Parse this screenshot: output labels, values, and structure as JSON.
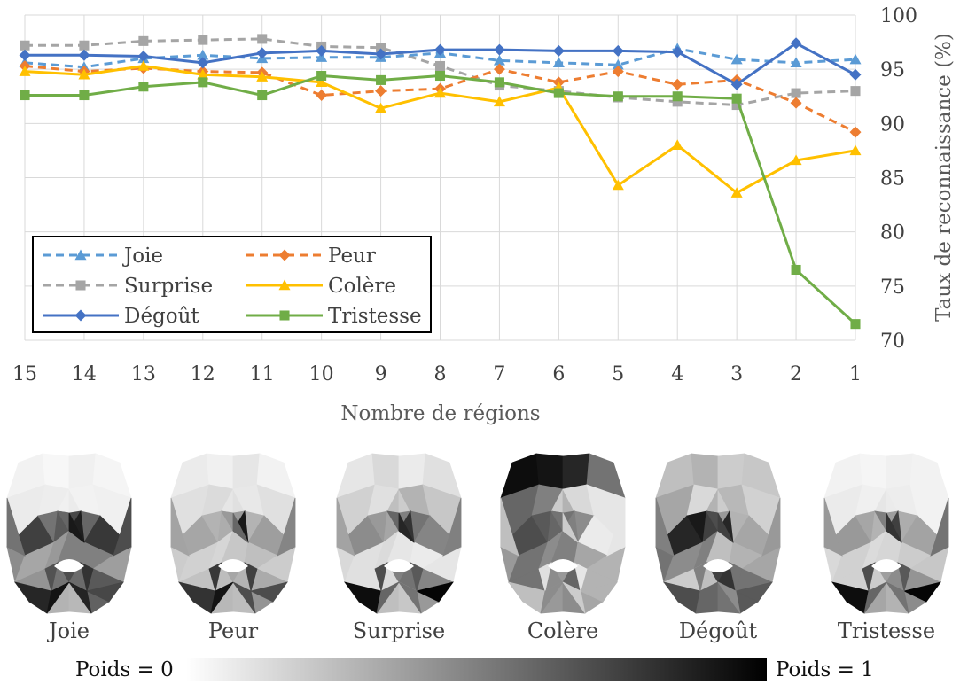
{
  "chart_data": {
    "type": "line",
    "title": "",
    "xlabel": "Nombre de régions",
    "ylabel": "Taux de reconnaissance (%)",
    "x": [
      "15",
      "14",
      "13",
      "12",
      "11",
      "10",
      "9",
      "8",
      "7",
      "6",
      "5",
      "4",
      "3",
      "2",
      "1"
    ],
    "ylim": [
      70,
      100
    ],
    "yticks": [
      70,
      75,
      80,
      85,
      90,
      95,
      100
    ],
    "y_axis_side": "right",
    "grid": true,
    "legend_position": "bottom-left",
    "series": [
      {
        "name": "Joie",
        "color": "#5b9bd5",
        "dash": true,
        "marker": "triangle",
        "values": [
          95.6,
          95.2,
          96.0,
          96.3,
          96.0,
          96.1,
          96.1,
          96.5,
          95.8,
          95.6,
          95.4,
          96.9,
          95.9,
          95.6,
          95.9
        ]
      },
      {
        "name": "Peur",
        "color": "#ed7d31",
        "dash": true,
        "marker": "diamond",
        "values": [
          95.3,
          94.8,
          95.1,
          94.8,
          94.7,
          92.6,
          93.0,
          93.2,
          95.0,
          93.8,
          94.8,
          93.6,
          94.0,
          91.9,
          89.2
        ]
      },
      {
        "name": "Surprise",
        "color": "#a5a5a5",
        "dash": true,
        "marker": "square",
        "values": [
          97.2,
          97.2,
          97.6,
          97.7,
          97.8,
          97.1,
          97.0,
          95.3,
          93.5,
          93.0,
          92.4,
          92.0,
          91.7,
          92.8,
          93.0
        ]
      },
      {
        "name": "Colère",
        "color": "#ffc000",
        "dash": false,
        "marker": "triangle",
        "values": [
          94.8,
          94.5,
          95.3,
          94.5,
          94.3,
          93.8,
          91.4,
          92.8,
          92.0,
          93.3,
          84.3,
          88.0,
          83.6,
          86.6,
          87.5
        ]
      },
      {
        "name": "Dégoût",
        "color": "#4472c4",
        "dash": false,
        "marker": "diamond",
        "values": [
          96.3,
          96.3,
          96.2,
          95.6,
          96.5,
          96.7,
          96.4,
          96.8,
          96.8,
          96.7,
          96.7,
          96.6,
          93.6,
          97.4,
          94.5
        ]
      },
      {
        "name": "Tristesse",
        "color": "#70ad47",
        "dash": false,
        "marker": "square",
        "values": [
          92.6,
          92.6,
          93.4,
          93.8,
          92.6,
          94.4,
          94.0,
          94.4,
          93.8,
          92.8,
          92.5,
          92.5,
          92.3,
          76.5,
          71.5
        ]
      }
    ]
  },
  "faces": [
    {
      "label": "Joie",
      "weights": [
        0.05,
        0.03,
        0.06,
        0.04,
        0.08,
        0.07,
        0.06,
        0.08,
        0.05,
        0.06,
        0.75,
        0.55,
        0.65,
        0.72,
        0.6,
        0.78,
        0.45,
        0.35,
        0.4,
        0.5,
        0.5,
        0.38,
        0.42,
        0.55,
        0.7,
        0.58,
        0.65,
        0.8,
        0.3,
        0.28,
        0.62,
        0.55,
        0.7,
        0.6,
        0.88,
        0.9,
        0.85,
        0.72,
        0.68,
        0.8,
        0.92,
        0.86
      ]
    },
    {
      "label": "Peur",
      "weights": [
        0.08,
        0.06,
        0.1,
        0.05,
        0.12,
        0.14,
        0.1,
        0.12,
        0.09,
        0.12,
        0.35,
        0.3,
        0.32,
        0.4,
        0.3,
        0.38,
        0.2,
        0.18,
        0.16,
        0.22,
        0.25,
        0.2,
        0.24,
        0.26,
        0.35,
        0.3,
        0.33,
        0.45,
        0.28,
        0.26,
        0.42,
        0.36,
        0.48,
        0.4,
        0.9,
        0.6,
        0.8,
        0.7,
        0.78,
        0.75,
        0.92,
        0.7
      ]
    },
    {
      "label": "Surprise",
      "weights": [
        0.1,
        0.15,
        0.08,
        0.12,
        0.18,
        0.12,
        0.25,
        0.2,
        0.3,
        0.22,
        0.45,
        0.4,
        0.35,
        0.5,
        0.55,
        0.48,
        0.15,
        0.12,
        0.14,
        0.1,
        0.08,
        0.1,
        0.12,
        0.14,
        0.5,
        0.55,
        0.48,
        0.6,
        0.25,
        0.22,
        0.4,
        0.36,
        0.5,
        0.6,
        0.8,
        0.85,
        0.95,
        0.98,
        0.7,
        0.65,
        0.6,
        0.55
      ]
    },
    {
      "label": "Colère",
      "weights": [
        0.95,
        0.92,
        0.85,
        0.55,
        0.6,
        0.5,
        0.2,
        0.3,
        0.15,
        0.1,
        0.7,
        0.65,
        0.6,
        0.55,
        0.45,
        0.08,
        0.4,
        0.55,
        0.45,
        0.5,
        0.35,
        0.3,
        0.55,
        0.45,
        0.4,
        0.6,
        0.3,
        0.15,
        0.4,
        0.45,
        0.35,
        0.25,
        0.1,
        0.55,
        0.5,
        0.2,
        0.25,
        0.3,
        0.12,
        0.1,
        0.45,
        0.2
      ]
    },
    {
      "label": "Dégoût",
      "weights": [
        0.25,
        0.3,
        0.2,
        0.22,
        0.35,
        0.15,
        0.3,
        0.2,
        0.28,
        0.18,
        0.85,
        0.9,
        0.75,
        0.4,
        0.3,
        0.35,
        0.55,
        0.45,
        0.5,
        0.25,
        0.3,
        0.35,
        0.2,
        0.25,
        0.75,
        0.8,
        0.55,
        0.3,
        0.6,
        0.55,
        0.65,
        0.5,
        0.4,
        0.7,
        0.85,
        0.75,
        0.7,
        0.65,
        0.5,
        0.55,
        0.6,
        0.45
      ]
    },
    {
      "label": "Tristesse",
      "weights": [
        0.05,
        0.04,
        0.06,
        0.05,
        0.08,
        0.06,
        0.1,
        0.08,
        0.07,
        0.05,
        0.4,
        0.35,
        0.3,
        0.38,
        0.32,
        0.36,
        0.15,
        0.18,
        0.14,
        0.16,
        0.2,
        0.22,
        0.18,
        0.2,
        0.38,
        0.45,
        0.42,
        0.4,
        0.35,
        0.3,
        0.45,
        0.4,
        0.55,
        0.5,
        0.75,
        0.8,
        0.95,
        0.98,
        0.7,
        0.65,
        0.6,
        0.55
      ]
    }
  ],
  "colorbar": {
    "min_label": "Poids = 0",
    "max_label": "Poids = 1",
    "from": "#ffffff",
    "to": "#000000"
  }
}
